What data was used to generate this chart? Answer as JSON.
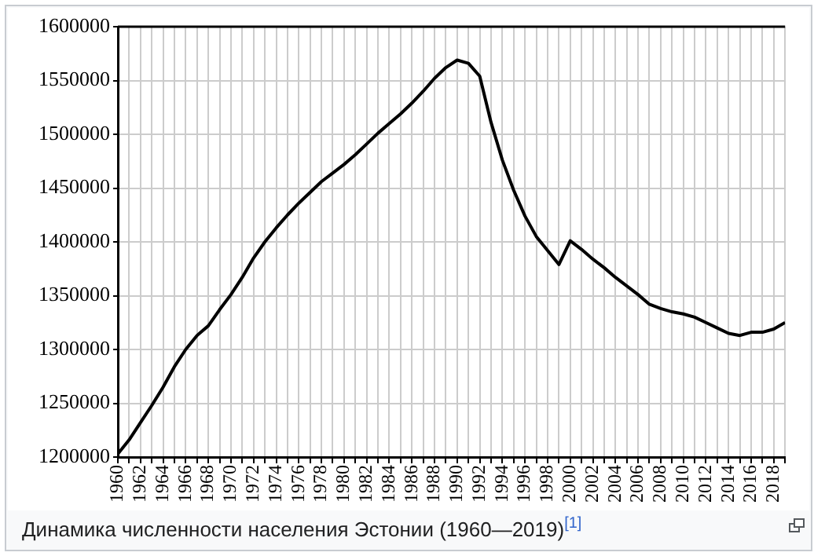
{
  "chart_data": {
    "type": "line",
    "x": [
      1960,
      1961,
      1962,
      1963,
      1964,
      1965,
      1966,
      1967,
      1968,
      1969,
      1970,
      1971,
      1972,
      1973,
      1974,
      1975,
      1976,
      1977,
      1978,
      1979,
      1980,
      1981,
      1982,
      1983,
      1984,
      1985,
      1986,
      1987,
      1988,
      1989,
      1990,
      1991,
      1992,
      1993,
      1994,
      1995,
      1996,
      1997,
      1998,
      1999,
      2000,
      2001,
      2002,
      2003,
      2004,
      2005,
      2006,
      2007,
      2008,
      2009,
      2010,
      2011,
      2012,
      2013,
      2014,
      2015,
      2016,
      2017,
      2018,
      2019
    ],
    "series": [
      {
        "color": "#000000",
        "values": [
          1203000,
          1216000,
          1232000,
          1248000,
          1265000,
          1284000,
          1300000,
          1313000,
          1322000,
          1337000,
          1351000,
          1367000,
          1385000,
          1400000,
          1413000,
          1425000,
          1436000,
          1446000,
          1456000,
          1464000,
          1472000,
          1481000,
          1491000,
          1501000,
          1510000,
          1519000,
          1529000,
          1540000,
          1552000,
          1562000,
          1569000,
          1566000,
          1554000,
          1511000,
          1476000,
          1448000,
          1424000,
          1405000,
          1392000,
          1379000,
          1401000,
          1393000,
          1384000,
          1376000,
          1367000,
          1359000,
          1351000,
          1342000,
          1338000,
          1335000,
          1333000,
          1330000,
          1325000,
          1320000,
          1315000,
          1313000,
          1316000,
          1316000,
          1319000,
          1325000
        ]
      }
    ],
    "xlim": [
      1960,
      2019
    ],
    "xticks": [
      1960,
      {
        "value": 1961,
        "label": null
      },
      1962,
      {
        "value": 1963,
        "label": null
      },
      1964,
      {
        "value": 1965,
        "label": null
      },
      1966,
      {
        "value": 1967,
        "label": null
      },
      1968,
      {
        "value": 1969,
        "label": null
      },
      1970,
      {
        "value": 1971,
        "label": null
      },
      1972,
      {
        "value": 1973,
        "label": null
      },
      1974,
      {
        "value": 1975,
        "label": null
      },
      1976,
      {
        "value": 1977,
        "label": null
      },
      1978,
      {
        "value": 1979,
        "label": null
      },
      1980,
      {
        "value": 1981,
        "label": null
      },
      1982,
      {
        "value": 1983,
        "label": null
      },
      1984,
      {
        "value": 1985,
        "label": null
      },
      1986,
      {
        "value": 1987,
        "label": null
      },
      1988,
      {
        "value": 1989,
        "label": null
      },
      1990,
      {
        "value": 1991,
        "label": null
      },
      1992,
      {
        "value": 1993,
        "label": null
      },
      1994,
      {
        "value": 1995,
        "label": null
      },
      1996,
      {
        "value": 1997,
        "label": null
      },
      1998,
      {
        "value": 1999,
        "label": null
      },
      2000,
      {
        "value": 2001,
        "label": null
      },
      2002,
      {
        "value": 2003,
        "label": null
      },
      2004,
      {
        "value": 2005,
        "label": null
      },
      2006,
      {
        "value": 2007,
        "label": null
      },
      2008,
      {
        "value": 2009,
        "label": null
      },
      2010,
      {
        "value": 2011,
        "label": null
      },
      2012,
      {
        "value": 2013,
        "label": null
      },
      2014,
      {
        "value": 2015,
        "label": null
      },
      2016,
      {
        "value": 2017,
        "label": null
      },
      2018,
      {
        "value": 2019,
        "label": null
      }
    ],
    "ylim": [
      1200000,
      1600000
    ],
    "yticks": [
      1200000,
      1250000,
      1300000,
      1350000,
      1400000,
      1450000,
      1500000,
      1550000,
      1600000
    ],
    "grid": true,
    "legend": false,
    "marker": "none",
    "line_style": "solid",
    "annotations": [
      "Динамика численности населения Эстонии (1960—2019)$^{[1]}$"
    ]
  }
}
